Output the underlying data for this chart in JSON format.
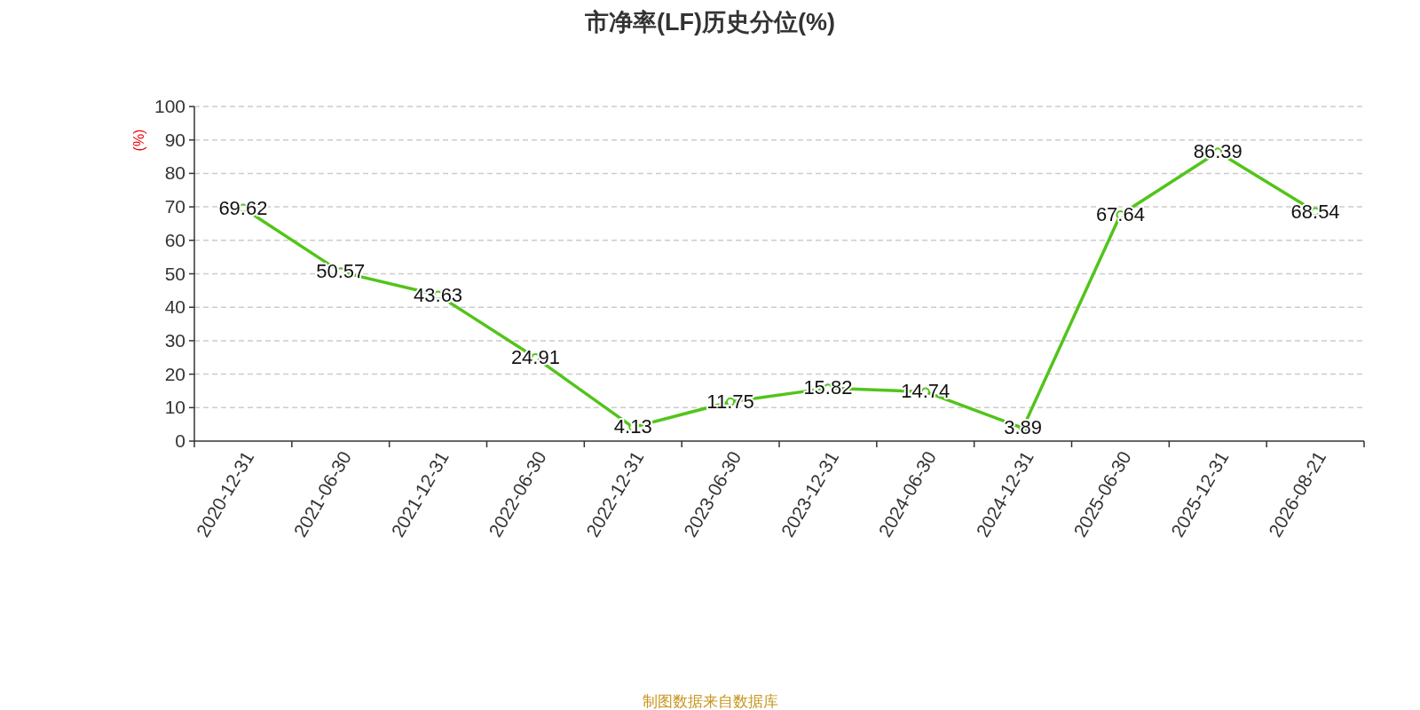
{
  "chart_data": {
    "type": "line",
    "title": "市净率(LF)历史分位(%)",
    "ylabel": "(%)",
    "categories": [
      "2020-12-31",
      "2021-06-30",
      "2021-12-31",
      "2022-06-30",
      "2022-12-31",
      "2023-06-30",
      "2023-12-31",
      "2024-06-30",
      "2024-12-31",
      "2025-06-30",
      "2025-12-31",
      "2026-08-21"
    ],
    "series": [
      {
        "color": "#52c41a",
        "values": [
          69.62,
          50.57,
          43.63,
          24.91,
          4.13,
          11.75,
          15.82,
          14.74,
          3.89,
          67.64,
          86.39,
          68.54
        ]
      }
    ],
    "ylim": [
      0,
      100
    ],
    "yticks": [
      0,
      10,
      20,
      30,
      40,
      50,
      60,
      70,
      80,
      90,
      100
    ],
    "grid": "y",
    "data_labels": true,
    "marker": "circle",
    "line_style": "solid",
    "annotations": [
      "制图数据来自数据库"
    ]
  }
}
